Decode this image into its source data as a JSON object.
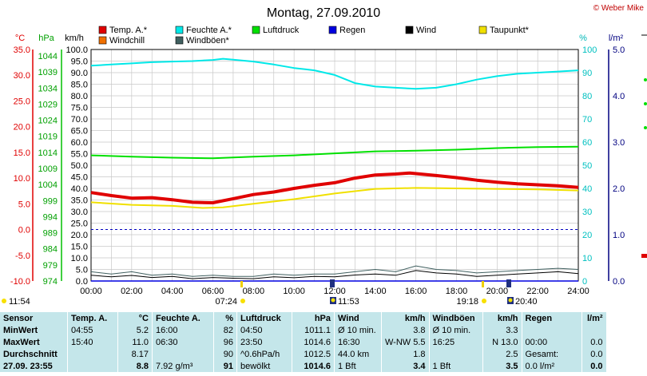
{
  "title": "Montag, 27.09.2010",
  "copyright": "© Weber Mike",
  "legend": [
    {
      "label": "Temp. A.*",
      "color": "#e00000"
    },
    {
      "label": "Feuchte A.*",
      "color": "#00e8e8"
    },
    {
      "label": "Luftdruck",
      "color": "#00e000"
    },
    {
      "label": "Regen",
      "color": "#0000e0"
    },
    {
      "label": "Wind",
      "color": "#000000"
    },
    {
      "label": "Taupunkt*",
      "color": "#f0e000"
    },
    {
      "label": "Windchill",
      "color": "#f07000"
    },
    {
      "label": "Windböen*",
      "color": "#406060"
    }
  ],
  "axis_units": {
    "temp": "°C",
    "pressure": "hPa",
    "wind": "km/h",
    "humidity": "%",
    "rain": "l/m²"
  },
  "temp_ticks": [
    "35.0",
    "30.0",
    "25.0",
    "20.0",
    "15.0",
    "10.0",
    "5.0",
    "0.0",
    "-5.0",
    "-10.0"
  ],
  "pressure_ticks": [
    "1044",
    "1039",
    "1034",
    "1029",
    "1024",
    "1019",
    "1014",
    "1009",
    "1004",
    "999",
    "994",
    "989",
    "984",
    "979",
    "974"
  ],
  "wind_ticks": [
    "100.0",
    "95.0",
    "90.0",
    "85.0",
    "80.0",
    "75.0",
    "70.0",
    "65.0",
    "60.0",
    "55.0",
    "50.0",
    "45.0",
    "40.0",
    "35.0",
    "30.0",
    "25.0",
    "20.0",
    "15.0",
    "10.0",
    "5.0",
    "0.0"
  ],
  "humidity_ticks": [
    "100",
    "90",
    "80",
    "70",
    "60",
    "50",
    "40",
    "30",
    "20",
    "10",
    "0"
  ],
  "rain_ticks": [
    "5.0",
    "4.0",
    "3.0",
    "2.0",
    "1.0",
    "0.0"
  ],
  "time_ticks": [
    "00:00",
    "02:00",
    "04:00",
    "06:00",
    "08:00",
    "10:00",
    "12:00",
    "14:00",
    "16:00",
    "18:00",
    "20:00",
    "22:00",
    "24:00"
  ],
  "event_markers": [
    {
      "time": "11:54",
      "kind": "sunrise-marker"
    },
    {
      "time": "07:24",
      "kind": "sun-marker"
    },
    {
      "time": "11:53",
      "kind": "moon-marker"
    },
    {
      "time": "19:18",
      "kind": "sun-marker"
    },
    {
      "time": "20:40",
      "kind": "moon-marker"
    }
  ],
  "chart_data": {
    "type": "line",
    "x_unit": "hour",
    "xlim": [
      0,
      24
    ],
    "series": [
      {
        "name": "Temp. A.*",
        "axis": "temp",
        "color": "#e00000",
        "ylim": [
          -10,
          35
        ],
        "points": [
          [
            0,
            7.2
          ],
          [
            1,
            6.6
          ],
          [
            2,
            6.1
          ],
          [
            3,
            6.2
          ],
          [
            4,
            5.8
          ],
          [
            5,
            5.3
          ],
          [
            6,
            5.2
          ],
          [
            7,
            6.0
          ],
          [
            8,
            6.8
          ],
          [
            9,
            7.3
          ],
          [
            10,
            8.0
          ],
          [
            11,
            8.6
          ],
          [
            12,
            9.1
          ],
          [
            13,
            10.0
          ],
          [
            14,
            10.6
          ],
          [
            15,
            10.8
          ],
          [
            15.7,
            11.0
          ],
          [
            17,
            10.5
          ],
          [
            18,
            10.1
          ],
          [
            19,
            9.6
          ],
          [
            20,
            9.2
          ],
          [
            21,
            8.9
          ],
          [
            22,
            8.7
          ],
          [
            23,
            8.5
          ],
          [
            24,
            8.2
          ]
        ]
      },
      {
        "name": "Feuchte A.*",
        "axis": "humidity",
        "color": "#00e8e8",
        "ylim": [
          0,
          100
        ],
        "points": [
          [
            0,
            93
          ],
          [
            1,
            93.5
          ],
          [
            2,
            94
          ],
          [
            3,
            94.5
          ],
          [
            4,
            94.8
          ],
          [
            5,
            95
          ],
          [
            6,
            95.5
          ],
          [
            6.5,
            96
          ],
          [
            7,
            95.6
          ],
          [
            8,
            94.8
          ],
          [
            9,
            93.5
          ],
          [
            10,
            92
          ],
          [
            11,
            91
          ],
          [
            12,
            89
          ],
          [
            13,
            85.5
          ],
          [
            14,
            84
          ],
          [
            15,
            83.5
          ],
          [
            16,
            83
          ],
          [
            17,
            83.5
          ],
          [
            18,
            85
          ],
          [
            19,
            87
          ],
          [
            20,
            88.5
          ],
          [
            21,
            89.5
          ],
          [
            22,
            90
          ],
          [
            23,
            90.5
          ],
          [
            24,
            91
          ]
        ]
      },
      {
        "name": "Luftdruck",
        "axis": "pressure",
        "color": "#00e000",
        "ylim": [
          974,
          1044
        ],
        "points": [
          [
            0,
            1012
          ],
          [
            2,
            1011.6
          ],
          [
            4,
            1011.3
          ],
          [
            6,
            1011.1
          ],
          [
            8,
            1011.6
          ],
          [
            10,
            1012.0
          ],
          [
            12,
            1012.6
          ],
          [
            14,
            1013.2
          ],
          [
            16,
            1013.4
          ],
          [
            18,
            1013.7
          ],
          [
            20,
            1014.2
          ],
          [
            22,
            1014.5
          ],
          [
            24,
            1014.6
          ]
        ]
      },
      {
        "name": "Taupunkt*",
        "axis": "temp",
        "color": "#f0e000",
        "ylim": [
          -10,
          35
        ],
        "points": [
          [
            0,
            5.3
          ],
          [
            2,
            4.8
          ],
          [
            4,
            4.6
          ],
          [
            5.5,
            4.2
          ],
          [
            6.5,
            4.3
          ],
          [
            8,
            5.0
          ],
          [
            10,
            5.9
          ],
          [
            12,
            7.0
          ],
          [
            14,
            7.9
          ],
          [
            16,
            8.1
          ],
          [
            18,
            8.0
          ],
          [
            20,
            7.9
          ],
          [
            22,
            7.8
          ],
          [
            24,
            7.6
          ]
        ]
      },
      {
        "name": "Wind",
        "axis": "wind",
        "color": "#000000",
        "ylim": [
          0,
          100
        ],
        "points": [
          [
            0,
            2.5
          ],
          [
            1,
            1.8
          ],
          [
            2,
            2.4
          ],
          [
            3,
            1.5
          ],
          [
            4,
            2.0
          ],
          [
            5,
            1.0
          ],
          [
            6,
            1.5
          ],
          [
            7,
            1.2
          ],
          [
            8,
            1.0
          ],
          [
            9,
            1.8
          ],
          [
            10,
            1.4
          ],
          [
            11,
            2.0
          ],
          [
            12,
            1.8
          ],
          [
            13,
            2.6
          ],
          [
            14,
            3.0
          ],
          [
            15,
            2.5
          ],
          [
            16,
            4.5
          ],
          [
            17,
            3.5
          ],
          [
            18,
            3.0
          ],
          [
            19,
            2.0
          ],
          [
            20,
            2.5
          ],
          [
            21,
            3.0
          ],
          [
            22,
            3.5
          ],
          [
            23,
            4.0
          ],
          [
            24,
            3.2
          ]
        ]
      },
      {
        "name": "Windböen*",
        "axis": "wind",
        "color": "#406060",
        "ylim": [
          0,
          100
        ],
        "points": [
          [
            0,
            4
          ],
          [
            1,
            3
          ],
          [
            2,
            4
          ],
          [
            3,
            2.5
          ],
          [
            4,
            3
          ],
          [
            5,
            2
          ],
          [
            6,
            2.5
          ],
          [
            7,
            2
          ],
          [
            8,
            2
          ],
          [
            9,
            3
          ],
          [
            10,
            2.5
          ],
          [
            11,
            3
          ],
          [
            12,
            3
          ],
          [
            13,
            4
          ],
          [
            14,
            5
          ],
          [
            15,
            4
          ],
          [
            16,
            6.5
          ],
          [
            17,
            5
          ],
          [
            18,
            4.5
          ],
          [
            19,
            3.5
          ],
          [
            20,
            4
          ],
          [
            21,
            4.5
          ],
          [
            22,
            5
          ],
          [
            23,
            5.5
          ],
          [
            24,
            5
          ]
        ]
      },
      {
        "name": "Regen",
        "axis": "rain",
        "color": "#0000e0",
        "ylim": [
          0,
          5
        ],
        "points": [
          [
            0,
            0
          ],
          [
            24,
            0
          ]
        ]
      }
    ],
    "reference_line": {
      "value": 0,
      "axis": "temp",
      "style": "dashed",
      "color": "#0000c0"
    }
  },
  "summary": {
    "headers": [
      "Sensor",
      "Temp. A.",
      "°C",
      "Feuchte A.",
      "%",
      "Luftdruck",
      "hPa",
      "Wind",
      "km/h",
      "Windböen",
      "km/h",
      "Regen",
      "l/m²"
    ],
    "rows": [
      [
        "MinWert",
        "04:55",
        "5.2",
        "16:00",
        "82",
        "04:50",
        "1011.1",
        "Ø 10 min.",
        "3.8",
        "Ø 10 min.",
        "3.3",
        "",
        ""
      ],
      [
        "MaxWert",
        "15:40",
        "11.0",
        "06:30",
        "96",
        "23:50",
        "1014.6",
        "16:30",
        "W-NW 5.5",
        "16:25",
        "N 13.0",
        "00:00",
        "0.0"
      ],
      [
        "Durchschnitt",
        "",
        "8.17",
        "",
        "90",
        "^0.6hPa/h",
        "1012.5",
        "44.0 km",
        "1.8",
        "",
        "2.5",
        "Gesamt:",
        "0.0"
      ],
      [
        "27.09. 23:55",
        "",
        "8.8",
        "7.92 g/m³",
        "91",
        "bewölkt",
        "1014.6",
        "1 Bft",
        "3.4",
        "1 Bft",
        "3.5",
        "0.0 l/m²",
        "0.0"
      ]
    ]
  }
}
